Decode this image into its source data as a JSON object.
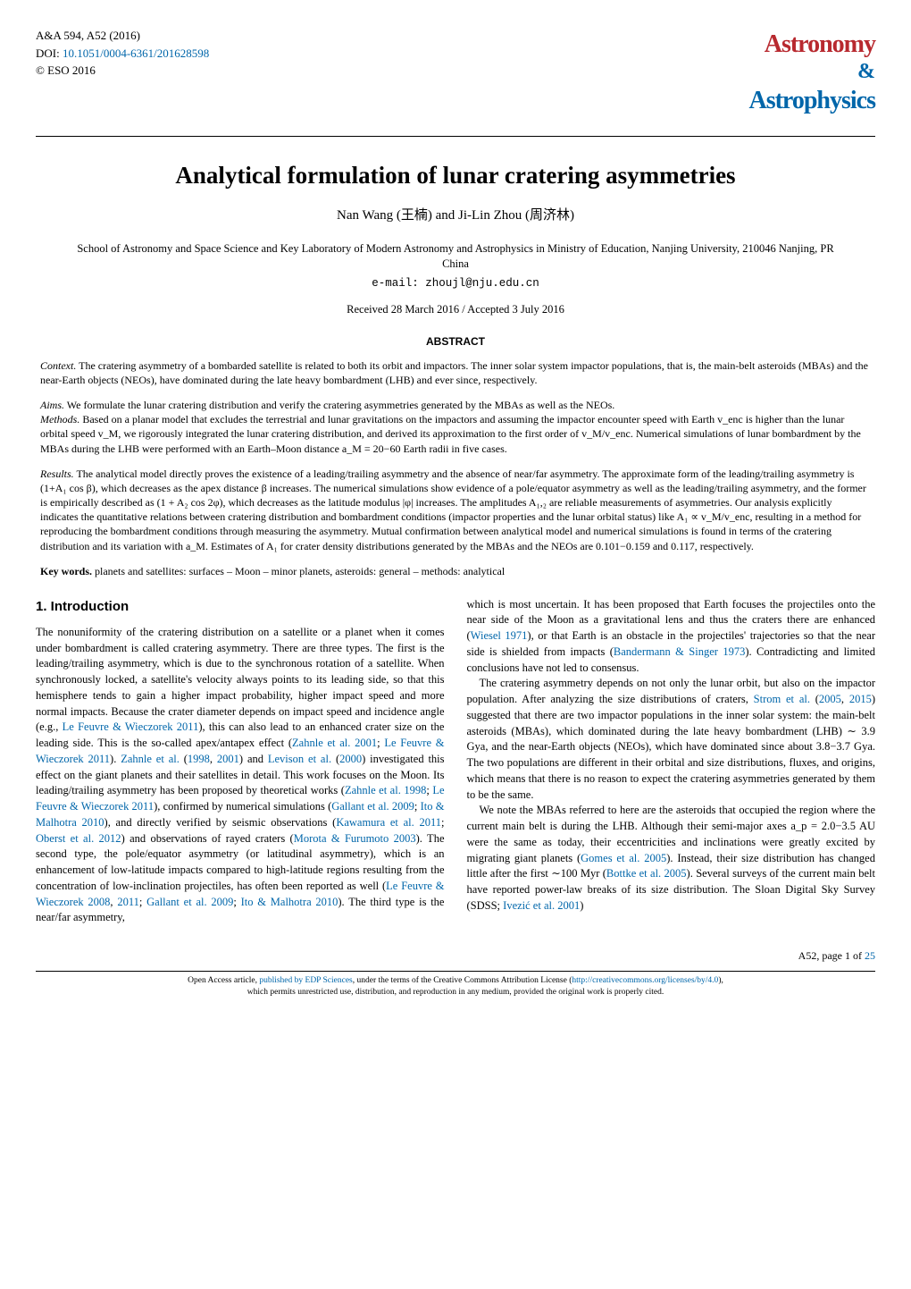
{
  "header": {
    "journal_ref": "A&A 594, A52 (2016)",
    "doi_prefix": "DOI: ",
    "doi_link": "10.1051/0004-6361/201628598",
    "copyright": "© ESO 2016",
    "logo_astronomy": "Astronomy",
    "logo_amp": "&",
    "logo_astrophysics": "Astrophysics",
    "logo_color_red": "#b8292f",
    "logo_color_blue": "#0066aa"
  },
  "title": "Analytical formulation of lunar cratering asymmetries",
  "authors": "Nan Wang (王楠) and Ji-Lin Zhou (周济林)",
  "affiliation": "School of Astronomy and Space Science and Key Laboratory of Modern Astronomy and Astrophysics in Ministry of Education, Nanjing University, 210046 Nanjing, PR China",
  "email_prefix": "e-mail: ",
  "email": "zhoujl@nju.edu.cn",
  "dates": "Received 28 March 2016 / Accepted 3 July 2016",
  "abstract_header": "ABSTRACT",
  "abstract": {
    "context_label": "Context.",
    "context_text": " The cratering asymmetry of a bombarded satellite is related to both its orbit and impactors. The inner solar system impactor populations, that is, the main-belt asteroids (MBAs) and the near-Earth objects (NEOs), have dominated during the late heavy bombardment (LHB) and ever since, respectively.",
    "aims_label": "Aims.",
    "aims_text": " We formulate the lunar cratering distribution and verify the cratering asymmetries generated by the MBAs as well as the NEOs.",
    "methods_label": "Methods.",
    "methods_text": " Based on a planar model that excludes the terrestrial and lunar gravitations on the impactors and assuming the impactor encounter speed with Earth v_enc is higher than the lunar orbital speed v_M, we rigorously integrated the lunar cratering distribution, and derived its approximation to the first order of v_M/v_enc. Numerical simulations of lunar bombardment by the MBAs during the LHB were performed with an Earth–Moon distance a_M = 20−60 Earth radii in five cases.",
    "results_label": "Results.",
    "results_text": " The analytical model directly proves the existence of a leading/trailing asymmetry and the absence of near/far asymmetry. The approximate form of the leading/trailing asymmetry is (1+A₁ cos β), which decreases as the apex distance β increases. The numerical simulations show evidence of a pole/equator asymmetry as well as the leading/trailing asymmetry, and the former is empirically described as (1 + A₂ cos 2φ), which decreases as the latitude modulus |φ| increases. The amplitudes A₁,₂ are reliable measurements of asymmetries. Our analysis explicitly indicates the quantitative relations between cratering distribution and bombardment conditions (impactor properties and the lunar orbital status) like A₁ ∝ v_M/v_enc, resulting in a method for reproducing the bombardment conditions through measuring the asymmetry. Mutual confirmation between analytical model and numerical simulations is found in terms of the cratering distribution and its variation with a_M. Estimates of A₁ for crater density distributions generated by the MBAs and the NEOs are 0.101−0.159 and 0.117, respectively."
  },
  "keywords_label": "Key words.",
  "keywords_text": " planets and satellites: surfaces – Moon – minor planets, asteroids: general – methods: analytical",
  "section1_header": "1. Introduction",
  "col_left": {
    "p1_a": "The nonuniformity of the cratering distribution on a satellite or a planet when it comes under bombardment is called cratering asymmetry. There are three types. The first is the leading/trailing asymmetry, which is due to the synchronous rotation of a satellite. When synchronously locked, a satellite's velocity always points to its leading side, so that this hemisphere tends to gain a higher impact probability, higher impact speed and more normal impacts. Because the crater diameter depends on impact speed and incidence angle (e.g., ",
    "p1_r1": "Le Feuvre & Wieczorek 2011",
    "p1_b": "), this can also lead to an enhanced crater size on the leading side. This is the so-called apex/antapex effect (",
    "p1_r2": "Zahnle et al. 2001",
    "p1_c": "; ",
    "p1_r3": "Le Feuvre & Wieczorek 2011",
    "p1_d": "). ",
    "p1_r4": "Zahnle et al.",
    "p1_e": " (",
    "p1_r5": "1998",
    "p1_f": ", ",
    "p1_r6": "2001",
    "p1_g": ") and ",
    "p1_r7": "Levison et al.",
    "p1_h": " (",
    "p1_r8": "2000",
    "p1_i": ") investigated this effect on the giant planets and their satellites in detail. This work focuses on the Moon. Its leading/trailing asymmetry has been proposed by theoretical works (",
    "p1_r9": "Zahnle et al. 1998",
    "p1_j": "; ",
    "p1_r10": "Le Feuvre & Wieczorek 2011",
    "p1_k": "), confirmed by numerical simulations (",
    "p1_r11": "Gallant et al. 2009",
    "p1_l": "; ",
    "p1_r12": "Ito & Malhotra 2010",
    "p1_m": "), and directly verified by seismic observations (",
    "p1_r13": "Kawamura et al. 2011",
    "p1_n": "; ",
    "p1_r14": "Oberst et al. 2012",
    "p1_o": ") and observations of rayed craters (",
    "p1_r15": "Morota & Furumoto 2003",
    "p1_p": "). The second type, the pole/equator asymmetry (or latitudinal asymmetry), which is an enhancement of low-latitude impacts compared to high-latitude regions resulting from the concentration of low-inclination projectiles, has often been reported as well (",
    "p1_r16": "Le Feuvre & Wieczorek 2008",
    "p1_q": ", ",
    "p1_r17": "2011",
    "p1_r_": "; ",
    "p1_r18": "Gallant et al. 2009",
    "p1_s": "; ",
    "p1_r19": "Ito & Malhotra 2010",
    "p1_t": "). The third type is the near/far asymmetry,"
  },
  "col_right": {
    "p1_a": "which is most uncertain. It has been proposed that Earth focuses the projectiles onto the near side of the Moon as a gravitational lens and thus the craters there are enhanced (",
    "p1_r1": "Wiesel 1971",
    "p1_b": "), or that Earth is an obstacle in the projectiles' trajectories so that the near side is shielded from impacts (",
    "p1_r2": "Bandermann & Singer 1973",
    "p1_c": "). Contradicting and limited conclusions have not led to consensus.",
    "p2_a": "The cratering asymmetry depends on not only the lunar orbit, but also on the impactor population. After analyzing the size distributions of craters, ",
    "p2_r1": "Strom et al.",
    "p2_b": " (",
    "p2_r2": "2005",
    "p2_c": ", ",
    "p2_r3": "2015",
    "p2_d": ") suggested that there are two impactor populations in the inner solar system: the main-belt asteroids (MBAs), which dominated during the late heavy bombardment (LHB) ∼ 3.9 Gya, and the near-Earth objects (NEOs), which have dominated since about 3.8−3.7 Gya. The two populations are different in their orbital and size distributions, fluxes, and origins, which means that there is no reason to expect the cratering asymmetries generated by them to be the same.",
    "p3_a": "We note the MBAs referred to here are the asteroids that occupied the region where the current main belt is during the LHB. Although their semi-major axes a_p = 2.0−3.5 AU were the same as today, their eccentricities and inclinations were greatly excited by migrating giant planets (",
    "p3_r1": "Gomes et al. 2005",
    "p3_b": "). Instead, their size distribution has changed little after the first ∼100 Myr (",
    "p3_r2": "Bottke et al. 2005",
    "p3_c": "). Several surveys of the current main belt have reported power-law breaks of its size distribution. The Sloan Digital Sky Survey (SDSS; ",
    "p3_r3": "Ivezić et al. 2001",
    "p3_d": ")"
  },
  "footer": {
    "page_ref": "A52, page 1 of ",
    "page_total": "25",
    "license_a": "Open Access article, ",
    "license_r1": "published by EDP Sciences",
    "license_b": ", under the terms of the Creative Commons Attribution License (",
    "license_r2": "http://creativecommons.org/licenses/by/4.0",
    "license_c": "),",
    "license_d": "which permits unrestricted use, distribution, and reproduction in any medium, provided the original work is properly cited."
  },
  "link_color": "#0066aa"
}
